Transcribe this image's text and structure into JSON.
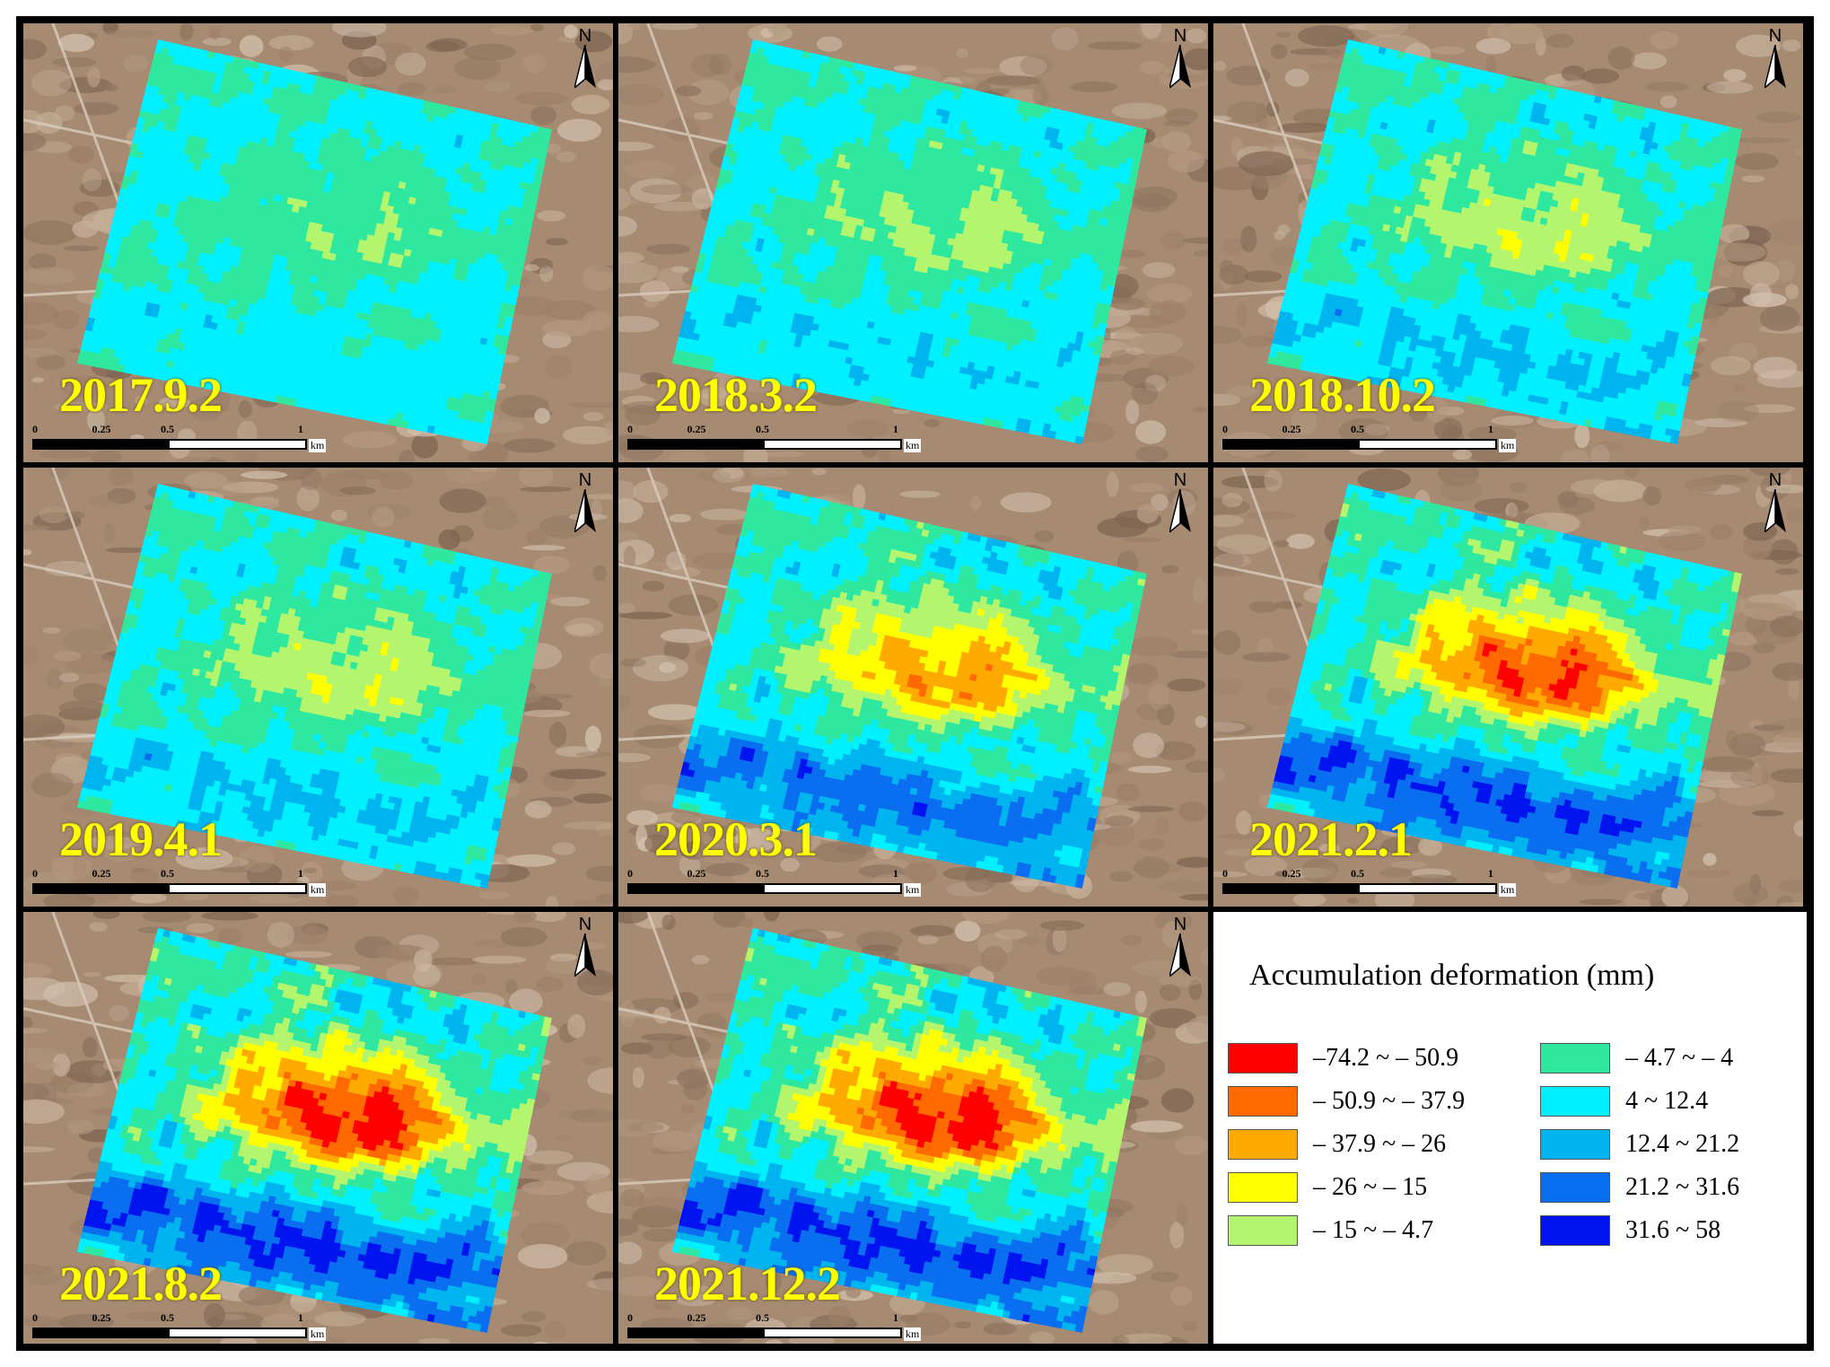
{
  "panels": [
    {
      "date": "2017.9.2",
      "stage": 0
    },
    {
      "date": "2018.3.2",
      "stage": 1
    },
    {
      "date": "2018.10.2",
      "stage": 2
    },
    {
      "date": "2019.4.1",
      "stage": 2
    },
    {
      "date": "2020.3.1",
      "stage": 4
    },
    {
      "date": "2021.2.1",
      "stage": 5
    },
    {
      "date": "2021.8.2",
      "stage": 6
    },
    {
      "date": "2021.12.2",
      "stage": 6
    }
  ],
  "north_label": "N",
  "scalebar": {
    "ticks": [
      "0",
      "0.25",
      "0.5",
      "1"
    ],
    "unit": "km"
  },
  "legend": {
    "title": "Accumulation deformation (mm)",
    "items": [
      {
        "label": "–74.2 ~ – 50.9",
        "color": "#ff0000"
      },
      {
        "label": "– 50.9 ~ – 37.9",
        "color": "#ff6a00"
      },
      {
        "label": "– 37.9 ~ – 26",
        "color": "#ffaa00"
      },
      {
        "label": "– 26 ~ – 15",
        "color": "#ffff00"
      },
      {
        "label": "– 15 ~ – 4.7",
        "color": "#b4f56e"
      },
      {
        "label": "– 4.7 ~ – 4",
        "color": "#2ee8a0"
      },
      {
        "label": "4 ~ 12.4",
        "color": "#00f0ff"
      },
      {
        "label": "12.4 ~ 21.2",
        "color": "#00b4f0"
      },
      {
        "label": "21.2 ~ 31.6",
        "color": "#0a6ef0"
      },
      {
        "label": "31.6 ~ 58",
        "color": "#0014f0"
      }
    ]
  }
}
